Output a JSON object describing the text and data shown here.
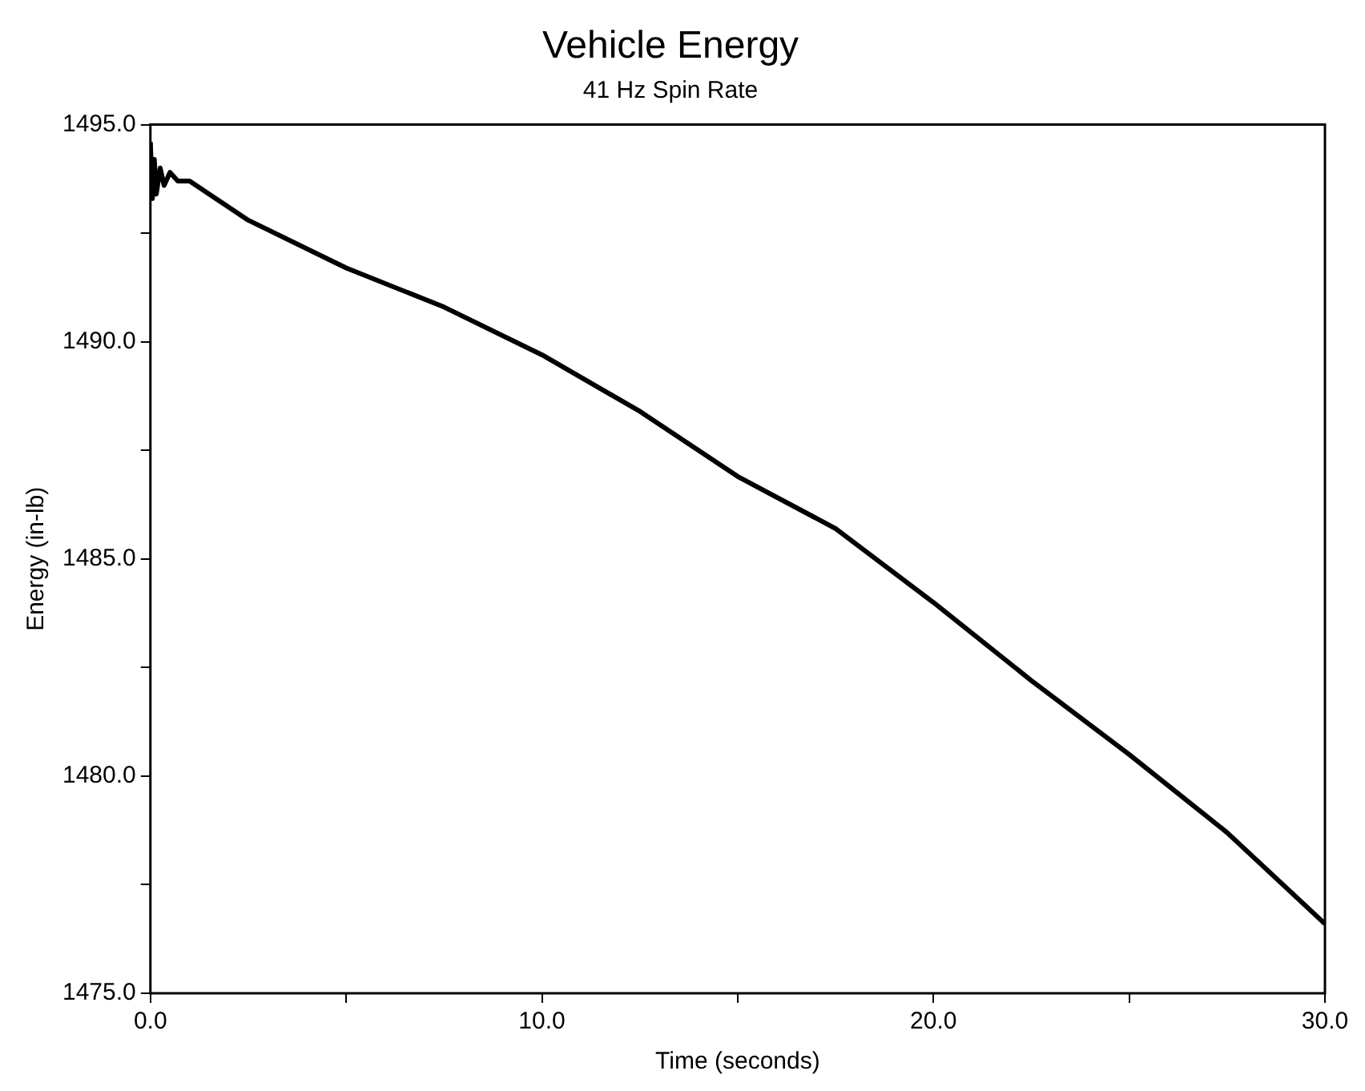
{
  "chart_data": {
    "type": "line",
    "title": "Vehicle Energy",
    "subtitle": "41 Hz Spin Rate",
    "xlabel": "Time (seconds)",
    "ylabel": "Energy (in-lb)",
    "x": [
      0,
      0.05,
      0.1,
      0.15,
      0.25,
      0.35,
      0.5,
      0.7,
      1,
      2.5,
      5,
      7.5,
      10,
      12.5,
      15,
      17.5,
      20,
      22.5,
      25,
      27.5,
      30
    ],
    "series": [
      {
        "color": "#000000",
        "values": [
          1494.6,
          1493.3,
          1494.2,
          1493.4,
          1494.0,
          1493.6,
          1493.9,
          1493.7,
          1493.7,
          1492.8,
          1491.7,
          1490.8,
          1489.7,
          1488.4,
          1486.9,
          1485.7,
          1484.0,
          1482.2,
          1480.5,
          1478.7,
          1476.6
        ]
      }
    ],
    "xlim": [
      0,
      30
    ],
    "ylim": [
      1475,
      1495
    ],
    "xticks": [
      {
        "value": 0,
        "label": "0.0"
      },
      {
        "value": 5,
        "label": null
      },
      {
        "value": 10,
        "label": "10.0"
      },
      {
        "value": 15,
        "label": null
      },
      {
        "value": 20,
        "label": "20.0"
      },
      {
        "value": 25,
        "label": null
      },
      {
        "value": 30,
        "label": "30.0"
      }
    ],
    "yticks": [
      {
        "value": 1475,
        "label": "1475.0"
      },
      {
        "value": 1477.5,
        "label": null
      },
      {
        "value": 1480,
        "label": "1480.0"
      },
      {
        "value": 1482.5,
        "label": null
      },
      {
        "value": 1485,
        "label": "1485.0"
      },
      {
        "value": 1487.5,
        "label": null
      },
      {
        "value": 1490,
        "label": "1490.0"
      },
      {
        "value": 1492.5,
        "label": null
      },
      {
        "value": 1495,
        "label": "1495.0"
      }
    ],
    "grid": false,
    "legend": false,
    "marker": "none",
    "line_style": "solid"
  }
}
